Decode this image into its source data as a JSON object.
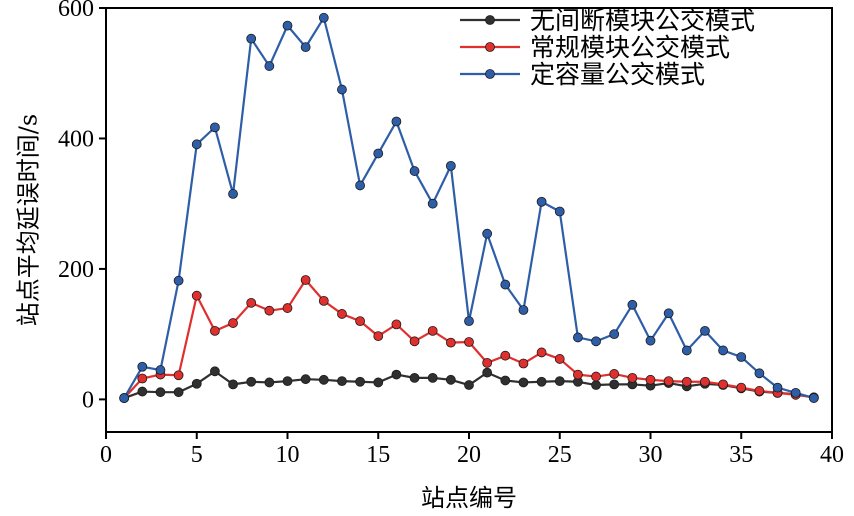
{
  "chart_data": {
    "type": "line",
    "xlabel": "站点编号",
    "ylabel": "站点平均延误时间/s",
    "xlim": [
      0,
      40
    ],
    "ylim": [
      -50,
      600
    ],
    "xticks": [
      0,
      5,
      10,
      15,
      20,
      25,
      30,
      35,
      40
    ],
    "yticks": [
      0,
      200,
      400,
      600
    ],
    "grid": false,
    "legend_position": "top-right",
    "x": [
      1,
      2,
      3,
      4,
      5,
      6,
      7,
      8,
      9,
      10,
      11,
      12,
      13,
      14,
      15,
      16,
      17,
      18,
      19,
      20,
      21,
      22,
      23,
      24,
      25,
      26,
      27,
      28,
      29,
      30,
      31,
      32,
      33,
      34,
      35,
      36,
      37,
      38,
      39
    ],
    "series": [
      {
        "name": "无间断模块公交模式",
        "color": "#303030",
        "values": [
          2,
          12,
          11,
          11,
          24,
          43,
          23,
          27,
          26,
          28,
          31,
          30,
          28,
          27,
          26,
          38,
          33,
          33,
          30,
          22,
          41,
          29,
          26,
          27,
          28,
          27,
          22,
          23,
          23,
          21,
          25,
          20,
          24,
          22,
          17,
          12,
          10,
          8,
          3
        ]
      },
      {
        "name": "常规模块公交模式",
        "color": "#e0302e",
        "values": [
          2,
          32,
          38,
          37,
          159,
          105,
          117,
          148,
          136,
          140,
          183,
          151,
          131,
          120,
          97,
          115,
          89,
          105,
          87,
          88,
          56,
          67,
          55,
          72,
          62,
          38,
          35,
          39,
          33,
          30,
          28,
          27,
          27,
          23,
          18,
          13,
          10,
          7,
          3
        ]
      },
      {
        "name": "定容量公交模式",
        "color": "#2e5ea8",
        "values": [
          2,
          50,
          45,
          182,
          391,
          417,
          315,
          553,
          511,
          573,
          540,
          585,
          475,
          328,
          377,
          426,
          350,
          300,
          358,
          120,
          254,
          176,
          137,
          303,
          288,
          95,
          89,
          100,
          145,
          90,
          132,
          75,
          105,
          75,
          65,
          40,
          18,
          10,
          2
        ]
      }
    ]
  }
}
